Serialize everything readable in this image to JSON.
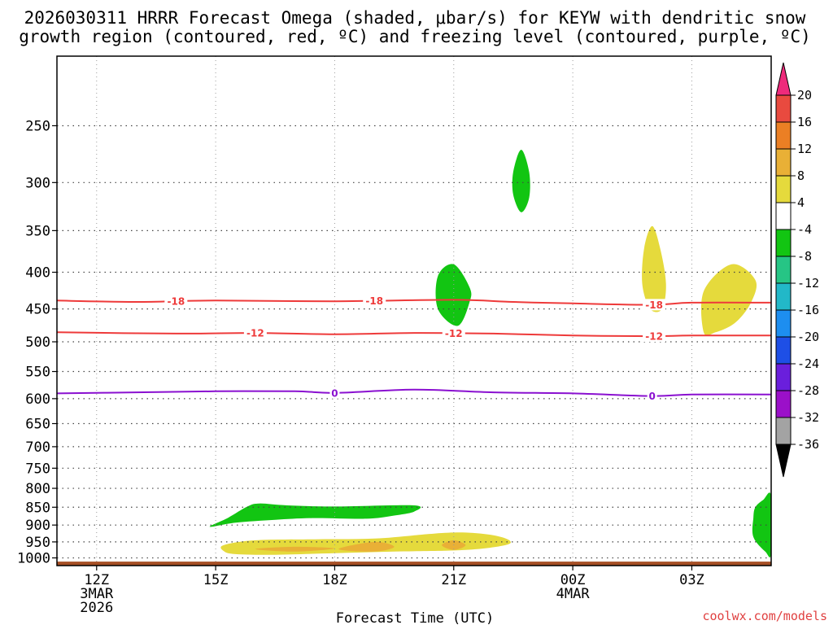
{
  "title_lines": [
    "2026030311 HRRR Forecast Omega (shaded, μbar/s) for KEYW with dendritic snow",
    "growth region (contoured, red, ºC) and freezing level (contoured, purple, ºC)"
  ],
  "credit": "coolwx.com/models",
  "chart_data": {
    "type": "heatmap",
    "xlabel": "Forecast Time (UTC)",
    "x_unit": "hours after 2026-03-03 12Z",
    "xlim": [
      -1,
      17
    ],
    "x_ticks": [
      {
        "x": 0,
        "lines": [
          "12Z",
          "3MAR",
          "2026"
        ]
      },
      {
        "x": 3,
        "lines": [
          "15Z"
        ]
      },
      {
        "x": 6,
        "lines": [
          "18Z"
        ]
      },
      {
        "x": 9,
        "lines": [
          "21Z"
        ]
      },
      {
        "x": 12,
        "lines": [
          "00Z",
          "4MAR"
        ]
      },
      {
        "x": 15,
        "lines": [
          "03Z"
        ]
      }
    ],
    "y_unit": "hPa",
    "y_scale": "log",
    "ylim": [
      1025,
      200
    ],
    "y_ticks": [
      250,
      300,
      350,
      400,
      450,
      500,
      550,
      600,
      650,
      700,
      750,
      800,
      850,
      900,
      950,
      1000
    ],
    "grid": true,
    "colorbar": {
      "label_unit": "μbar/s",
      "levels": [
        20,
        16,
        12,
        8,
        4,
        -4,
        -8,
        -12,
        -16,
        -20,
        -24,
        -28,
        -32,
        -36
      ],
      "colors": [
        "#ee2a7b",
        "#e94a3f",
        "#eb7f24",
        "#e9b036",
        "#e5da3c",
        "#ffffff",
        "#12c512",
        "#26c585",
        "#22b8c8",
        "#1d8ef0",
        "#1e4fe6",
        "#6a1fdc",
        "#9b10c9",
        "#a3a3a3",
        "#000000"
      ]
    },
    "omega_regions": [
      {
        "level": -8,
        "color": "#12c512",
        "polygon": [
          [
            10.7,
            270
          ],
          [
            10.9,
            290
          ],
          [
            10.9,
            315
          ],
          [
            10.7,
            330
          ],
          [
            10.5,
            312
          ],
          [
            10.5,
            290
          ]
        ]
      },
      {
        "level": -8,
        "color": "#12c512",
        "polygon": [
          [
            9.0,
            390
          ],
          [
            9.4,
            420
          ],
          [
            9.4,
            440
          ],
          [
            9.1,
            475
          ],
          [
            8.6,
            450
          ],
          [
            8.6,
            405
          ]
        ]
      },
      {
        "level": -8,
        "color": "#12c512",
        "polygon": [
          [
            2.85,
            905
          ],
          [
            3.3,
            880
          ],
          [
            3.8,
            848
          ],
          [
            4.1,
            840
          ],
          [
            4.8,
            845
          ],
          [
            6.0,
            848
          ],
          [
            8.0,
            845
          ],
          [
            8.0,
            862
          ],
          [
            7.5,
            873
          ],
          [
            6.8,
            882
          ],
          [
            5.5,
            880
          ],
          [
            4.5,
            885
          ],
          [
            3.5,
            893
          ]
        ]
      },
      {
        "level": -8,
        "color": "#12c512",
        "polygon": [
          [
            17.0,
            820
          ],
          [
            17.0,
            985
          ],
          [
            16.85,
            980
          ],
          [
            16.55,
            935
          ],
          [
            16.55,
            880
          ],
          [
            16.6,
            850
          ],
          [
            16.8,
            830
          ]
        ]
      },
      {
        "level": 4,
        "color": "#e5da3c",
        "polygon": [
          [
            14.0,
            345
          ],
          [
            14.2,
            370
          ],
          [
            14.35,
            415
          ],
          [
            14.25,
            450
          ],
          [
            13.95,
            450
          ],
          [
            13.75,
            415
          ],
          [
            13.8,
            370
          ]
        ]
      },
      {
        "level": 4,
        "color": "#e5da3c",
        "polygon": [
          [
            16.0,
            390
          ],
          [
            16.6,
            410
          ],
          [
            16.5,
            440
          ],
          [
            16.1,
            470
          ],
          [
            15.6,
            485
          ],
          [
            15.3,
            485
          ],
          [
            15.3,
            425
          ]
        ]
      },
      {
        "level": 4,
        "color": "#e5da3c",
        "polygon": [
          [
            3.2,
            960
          ],
          [
            4.0,
            945
          ],
          [
            5.5,
            942
          ],
          [
            7.0,
            940
          ],
          [
            8.5,
            925
          ],
          [
            9.3,
            922
          ],
          [
            10.0,
            930
          ],
          [
            10.4,
            945
          ],
          [
            10.3,
            960
          ],
          [
            9.3,
            975
          ],
          [
            7.5,
            980
          ],
          [
            6.0,
            985
          ],
          [
            4.5,
            990
          ],
          [
            3.5,
            988
          ],
          [
            3.2,
            978
          ]
        ]
      },
      {
        "level": 8,
        "color": "#e9b036",
        "polygon": [
          [
            4.0,
            972
          ],
          [
            5.0,
            965
          ],
          [
            6.0,
            970
          ],
          [
            5.0,
            980
          ]
        ]
      },
      {
        "level": 8,
        "color": "#e9b036",
        "polygon": [
          [
            6.1,
            972
          ],
          [
            7.0,
            950
          ],
          [
            7.5,
            965
          ],
          [
            7.0,
            980
          ]
        ]
      },
      {
        "level": 8,
        "color": "#e9b036",
        "polygon": [
          [
            8.7,
            960
          ],
          [
            9.0,
            945
          ],
          [
            9.3,
            960
          ],
          [
            9.0,
            975
          ]
        ]
      }
    ],
    "contours": [
      {
        "value": -18,
        "label": "-18",
        "color": "#ee3a3a",
        "points": [
          [
            -1,
            438
          ],
          [
            1,
            440
          ],
          [
            3,
            438
          ],
          [
            6,
            439
          ],
          [
            9,
            437
          ],
          [
            10.5,
            440
          ],
          [
            12,
            442
          ],
          [
            14,
            444
          ],
          [
            15,
            441
          ],
          [
            17,
            441
          ]
        ],
        "label_x": [
          2,
          7,
          14.05
        ]
      },
      {
        "value": -12,
        "label": "-12",
        "color": "#ee3a3a",
        "points": [
          [
            -1,
            485
          ],
          [
            2,
            487
          ],
          [
            4,
            486
          ],
          [
            6,
            488
          ],
          [
            8,
            486
          ],
          [
            10,
            487
          ],
          [
            12,
            490
          ],
          [
            14,
            491
          ],
          [
            15,
            490
          ],
          [
            17,
            490
          ]
        ],
        "label_x": [
          4,
          9,
          14.05
        ]
      },
      {
        "value": 0,
        "label": "0",
        "color": "#8a10d0",
        "points": [
          [
            -1,
            590
          ],
          [
            1,
            588
          ],
          [
            3,
            586
          ],
          [
            5,
            586
          ],
          [
            6,
            589
          ],
          [
            8,
            583
          ],
          [
            10,
            588
          ],
          [
            12,
            590
          ],
          [
            14,
            595
          ],
          [
            15,
            592
          ],
          [
            17,
            592
          ]
        ],
        "label_x": [
          6,
          14.0
        ]
      }
    ],
    "surface_band": {
      "color": "#a64f25",
      "y_from": 1012,
      "y_to": 1025
    }
  }
}
